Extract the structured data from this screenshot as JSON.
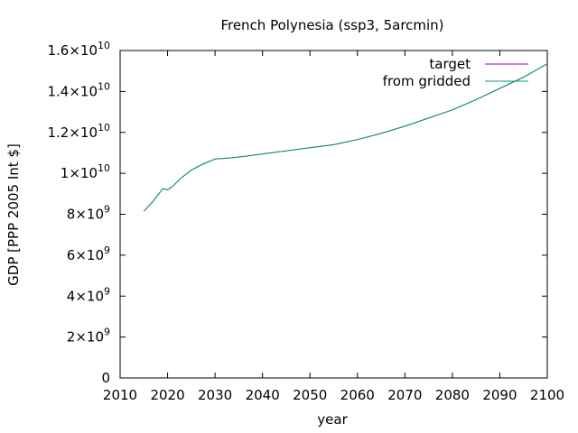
{
  "chart_data": {
    "type": "line",
    "title": "French Polynesia (ssp3, 5arcmin)",
    "xlabel": "year",
    "ylabel": "GDP [PPP 2005 Int $]",
    "xlim": [
      2010,
      2100
    ],
    "ylim": [
      0,
      16000000000
    ],
    "grid": false,
    "legend_position": "top-right",
    "x_ticks": [
      {
        "value": 2010,
        "label": "2010"
      },
      {
        "value": 2020,
        "label": "2020"
      },
      {
        "value": 2030,
        "label": "2030"
      },
      {
        "value": 2040,
        "label": "2040"
      },
      {
        "value": 2050,
        "label": "2050"
      },
      {
        "value": 2060,
        "label": "2060"
      },
      {
        "value": 2070,
        "label": "2070"
      },
      {
        "value": 2080,
        "label": "2080"
      },
      {
        "value": 2090,
        "label": "2090"
      },
      {
        "value": 2100,
        "label": "2100"
      }
    ],
    "y_ticks": [
      {
        "value": 0,
        "label": "0",
        "mant": "0",
        "exp": ""
      },
      {
        "value": 2000000000,
        "label": "2x10^9",
        "mant": "2x10",
        "exp": "9"
      },
      {
        "value": 4000000000,
        "label": "4x10^9",
        "mant": "4x10",
        "exp": "9"
      },
      {
        "value": 6000000000,
        "label": "6x10^9",
        "mant": "6x10",
        "exp": "9"
      },
      {
        "value": 8000000000,
        "label": "8x10^9",
        "mant": "8x10",
        "exp": "9"
      },
      {
        "value": 10000000000,
        "label": "1x10^10",
        "mant": "1x10",
        "exp": "10"
      },
      {
        "value": 12000000000,
        "label": "1.2x10^10",
        "mant": "1.2x10",
        "exp": "10"
      },
      {
        "value": 14000000000,
        "label": "1.4x10^10",
        "mant": "1.4x10",
        "exp": "10"
      },
      {
        "value": 16000000000,
        "label": "1.6x10^10",
        "mant": "1.6x10",
        "exp": "10"
      }
    ],
    "series": [
      {
        "name": "target",
        "color": "#9400d3",
        "x": [
          2015,
          2017,
          2019,
          2020,
          2021,
          2023,
          2025,
          2027,
          2029,
          2030,
          2033,
          2036,
          2040,
          2045,
          2050,
          2055,
          2060,
          2065,
          2070,
          2075,
          2080,
          2085,
          2090,
          2095,
          2100
        ],
        "values": [
          8150000000,
          8650000000,
          9250000000,
          9200000000,
          9350000000,
          9800000000,
          10150000000,
          10400000000,
          10600000000,
          10700000000,
          10750000000,
          10820000000,
          10950000000,
          11100000000,
          11250000000,
          11400000000,
          11650000000,
          11950000000,
          12300000000,
          12700000000,
          13100000000,
          13600000000,
          14150000000,
          14700000000,
          15350000000
        ]
      },
      {
        "name": "from gridded",
        "color": "#009e73",
        "x": [
          2015,
          2017,
          2019,
          2020,
          2021,
          2023,
          2025,
          2027,
          2029,
          2030,
          2033,
          2036,
          2040,
          2045,
          2050,
          2055,
          2060,
          2065,
          2070,
          2075,
          2080,
          2085,
          2090,
          2095,
          2100
        ],
        "values": [
          8150000000,
          8650000000,
          9250000000,
          9200000000,
          9350000000,
          9800000000,
          10150000000,
          10400000000,
          10600000000,
          10700000000,
          10750000000,
          10820000000,
          10950000000,
          11100000000,
          11250000000,
          11400000000,
          11650000000,
          11950000000,
          12300000000,
          12700000000,
          13100000000,
          13600000000,
          14150000000,
          14700000000,
          15350000000
        ]
      }
    ]
  }
}
